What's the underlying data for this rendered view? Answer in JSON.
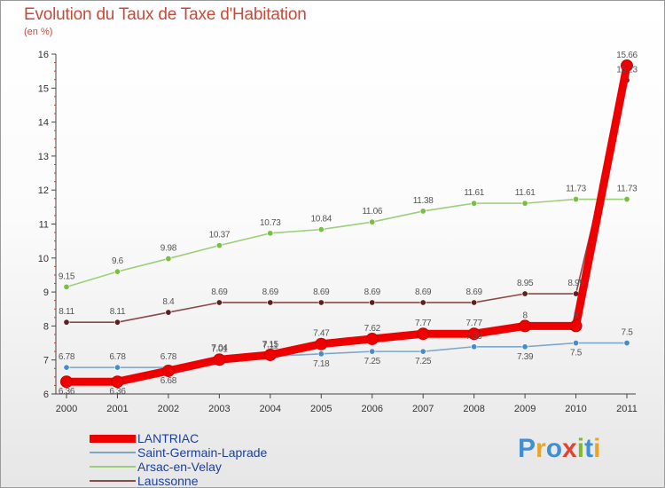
{
  "title": "Evolution du Taux de Taxe d'Habitation",
  "subtitle": "(en %)",
  "brand": {
    "text": "Proxiti",
    "letters": [
      "P",
      "r",
      "o",
      "x",
      "i",
      "t",
      "i"
    ],
    "colors": [
      "#3f8fd4",
      "#e9a52a",
      "#3f8fd4",
      "#e2422f",
      "#7fb834",
      "#3f8fd4",
      "#e9a52a"
    ]
  },
  "colors": {
    "title": "#c44a3c",
    "legend_text": "#1b3f9c",
    "axis": "#444444",
    "tick_minor": "#c0392b"
  },
  "chart_data": {
    "type": "line",
    "x": [
      "2000",
      "2001",
      "2002",
      "2003",
      "2004",
      "2005",
      "2006",
      "2007",
      "2008",
      "2009",
      "2010",
      "2011"
    ],
    "ylim": [
      6,
      16
    ],
    "yticks": [
      6,
      7,
      8,
      9,
      10,
      11,
      12,
      13,
      14,
      15,
      16
    ],
    "ytick_labels": [
      "6",
      "7",
      "8",
      "9",
      "10",
      "11",
      "12",
      "13",
      "14",
      "15",
      "16"
    ],
    "grid": false,
    "legend_position": "bottom-left",
    "series": [
      {
        "name": "LANTRIAC",
        "color": "#ee0000",
        "marker": "#ee0000",
        "values": [
          6.36,
          6.36,
          6.68,
          7.01,
          7.15,
          7.47,
          7.62,
          7.77,
          7.77,
          8,
          8,
          15.66
        ],
        "labels": [
          "6.36",
          "6.36",
          "6.68",
          "7.01",
          "7.15",
          "7.47",
          "7.62",
          "7.77",
          "7.77",
          "8",
          "8",
          "15.66"
        ],
        "label_side": [
          1,
          1,
          1,
          -1,
          -1,
          -1,
          -1,
          -1,
          -1,
          -1,
          -1,
          -1
        ]
      },
      {
        "name": "Saint-Germain-Laprade",
        "color": "#7aa6cf",
        "marker": "#4a8ac8",
        "values": [
          6.78,
          6.78,
          6.78,
          7.04,
          7.11,
          7.18,
          7.25,
          7.25,
          7.39,
          7.39,
          7.5,
          7.5
        ],
        "labels": [
          "6.78",
          "6.78",
          "6.78",
          "7.04",
          "7.11",
          "7.18",
          "7.25",
          "7.25",
          "7.39",
          "7.39",
          "7.5",
          "7.5"
        ],
        "label_side": [
          -1,
          -1,
          -1,
          -1,
          -1,
          1,
          1,
          1,
          -1,
          1,
          1,
          -1
        ]
      },
      {
        "name": "Arsac-en-Velay",
        "color": "#9ad07a",
        "marker": "#77c043",
        "values": [
          9.15,
          9.6,
          9.98,
          10.37,
          10.73,
          10.84,
          11.06,
          11.38,
          11.61,
          11.61,
          11.73,
          11.73
        ],
        "labels": [
          "9.15",
          "9.6",
          "9.98",
          "10.37",
          "10.73",
          "10.84",
          "11.06",
          "11.38",
          "11.61",
          "11.61",
          "11.73",
          "11.73"
        ],
        "label_side": [
          -1,
          -1,
          -1,
          -1,
          -1,
          -1,
          -1,
          -1,
          -1,
          -1,
          -1,
          -1
        ]
      },
      {
        "name": "Laussonne",
        "color": "#8b4a4a",
        "marker": "#5e1f1f",
        "values": [
          8.11,
          8.11,
          8.4,
          8.69,
          8.69,
          8.69,
          8.69,
          8.69,
          8.69,
          8.95,
          8.95,
          15.23
        ],
        "labels": [
          "8.11",
          "8.11",
          "8.4",
          "8.69",
          "8.69",
          "8.69",
          "8.69",
          "8.69",
          "8.69",
          "8.95",
          "8.95",
          "15.23"
        ],
        "label_side": [
          -1,
          -1,
          -1,
          -1,
          -1,
          -1,
          -1,
          -1,
          -1,
          -1,
          -1,
          -1
        ]
      }
    ]
  }
}
